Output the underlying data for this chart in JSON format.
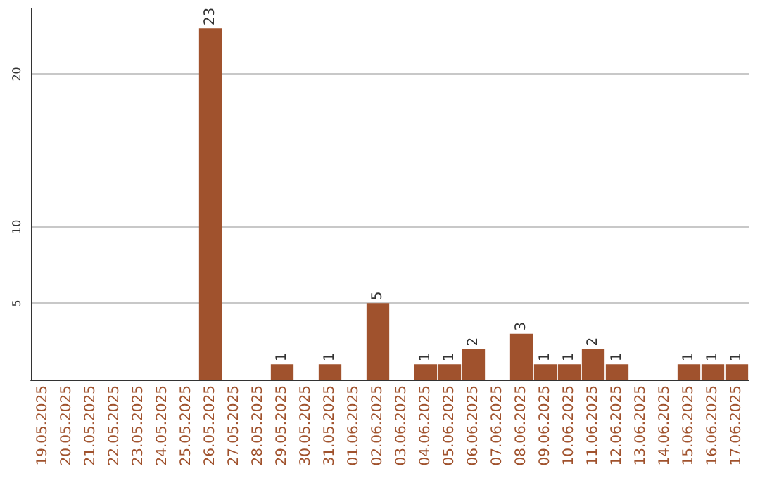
{
  "chart_data": {
    "type": "bar",
    "categories": [
      "19.05.2025",
      "20.05.2025",
      "21.05.2025",
      "22.05.2025",
      "23.05.2025",
      "24.05.2025",
      "25.05.2025",
      "26.05.2025",
      "27.05.2025",
      "28.05.2025",
      "29.05.2025",
      "30.05.2025",
      "31.05.2025",
      "01.06.2025",
      "02.06.2025",
      "03.06.2025",
      "04.06.2025",
      "05.06.2025",
      "06.06.2025",
      "07.06.2025",
      "08.06.2025",
      "09.06.2025",
      "10.06.2025",
      "11.06.2025",
      "12.06.2025",
      "13.06.2025",
      "14.06.2025",
      "15.06.2025",
      "16.06.2025",
      "17.06.2025"
    ],
    "values": [
      0,
      0,
      0,
      0,
      0,
      0,
      0,
      23,
      0,
      0,
      1,
      0,
      1,
      0,
      5,
      0,
      1,
      1,
      2,
      0,
      3,
      1,
      1,
      2,
      1,
      0,
      0,
      1,
      1,
      1
    ],
    "value_labels": [
      null,
      null,
      null,
      null,
      null,
      null,
      null,
      "23",
      null,
      null,
      "1",
      null,
      "1",
      null,
      "5",
      null,
      "1",
      "1",
      "2",
      null,
      "3",
      "1",
      "1",
      "2",
      "1",
      null,
      null,
      "1",
      "1",
      "1"
    ],
    "color": "#a0522d",
    "ylim": [
      0,
      24.3
    ],
    "yticks": [
      5,
      10,
      20
    ],
    "grid": "y"
  }
}
